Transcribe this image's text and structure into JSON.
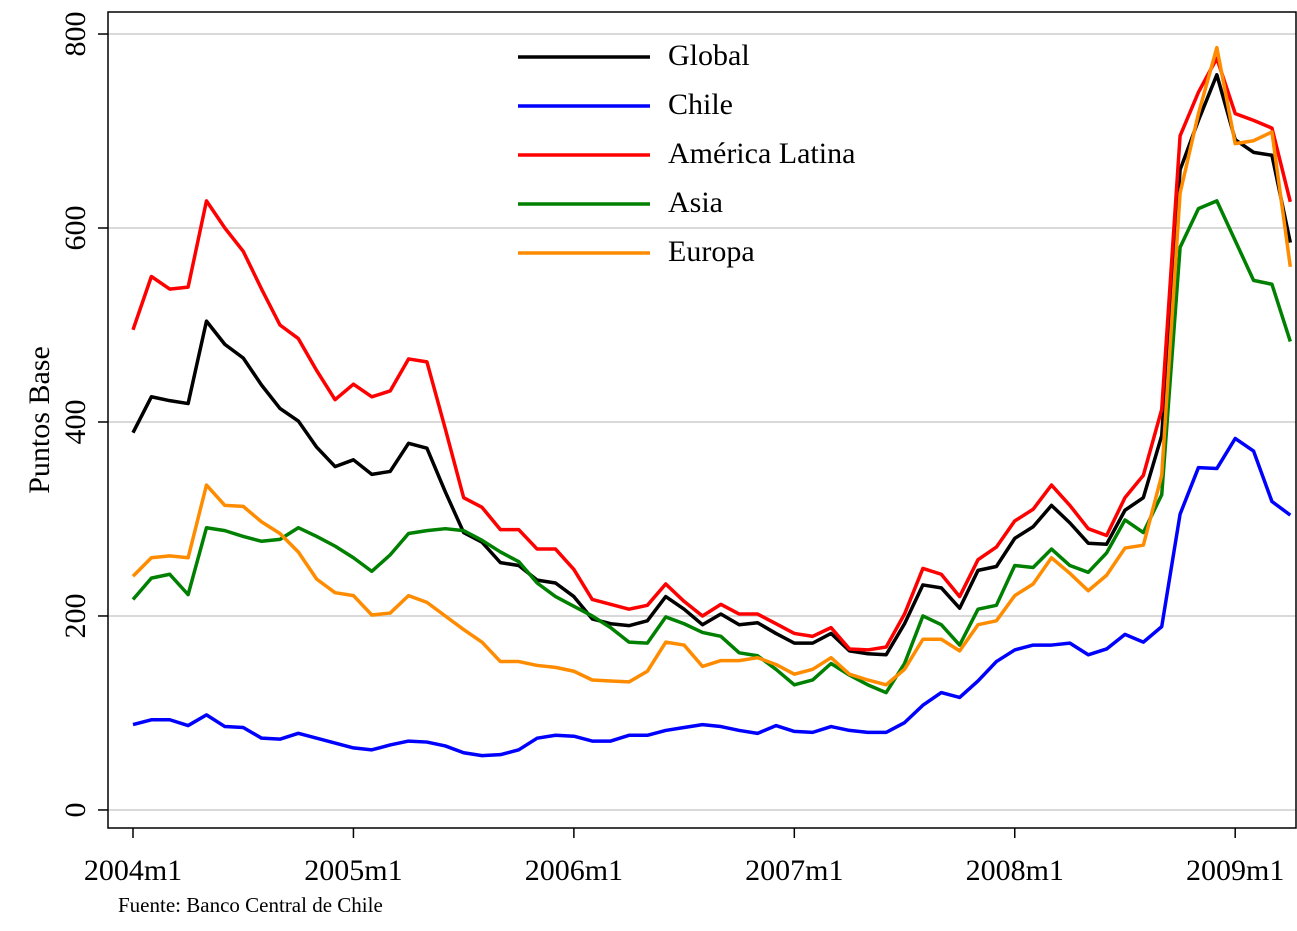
{
  "chart_data": {
    "type": "line",
    "y_label": "Puntos Base",
    "note": "Fuente: Banco Central de Chile",
    "categories": [
      "2004m1",
      null,
      null,
      null,
      null,
      null,
      null,
      null,
      null,
      null,
      null,
      null,
      "2005m1",
      null,
      null,
      null,
      null,
      null,
      null,
      null,
      null,
      null,
      null,
      null,
      "2006m1",
      null,
      null,
      null,
      null,
      null,
      null,
      null,
      null,
      null,
      null,
      null,
      "2007m1",
      null,
      null,
      null,
      null,
      null,
      null,
      null,
      null,
      null,
      null,
      null,
      "2008m1",
      null,
      null,
      null,
      null,
      null,
      null,
      null,
      null,
      null,
      null,
      null,
      "2009m1",
      null,
      null,
      null
    ],
    "ylim": [
      -18.6,
      822.7
    ],
    "yticks": [
      0,
      200,
      400,
      600,
      800
    ],
    "grid": true,
    "legend": "upper-center",
    "series": [
      {
        "name": "Global",
        "color": "#000000",
        "values": [
          389,
          426,
          422,
          419,
          504,
          480,
          466,
          438,
          414,
          401,
          374,
          354,
          361,
          346,
          349,
          378,
          373,
          328,
          286,
          276,
          255,
          252,
          237,
          234,
          220,
          197,
          192,
          190,
          195,
          220,
          207,
          191,
          202,
          191,
          193,
          182,
          172,
          172,
          182,
          164,
          161,
          160,
          192,
          232,
          229,
          208,
          247,
          251,
          280,
          292,
          314,
          296,
          275,
          274,
          309,
          322,
          386,
          660,
          711,
          758,
          691,
          678,
          675,
          585
        ]
      },
      {
        "name": "Chile",
        "color": "#0000ff",
        "values": [
          88,
          93,
          93,
          87,
          98,
          86,
          85,
          74,
          73,
          79,
          74,
          69,
          64,
          62,
          67,
          71,
          70,
          66,
          59,
          56,
          57,
          62,
          74,
          77,
          76,
          71,
          71,
          77,
          77,
          82,
          85,
          88,
          86,
          82,
          79,
          87,
          81,
          80,
          86,
          82,
          80,
          80,
          90,
          108,
          121,
          116,
          133,
          153,
          165,
          170,
          170,
          172,
          160,
          166,
          181,
          173,
          189,
          305,
          353,
          352,
          383,
          370,
          318,
          304
        ]
      },
      {
        "name": "América Latina",
        "color": "#ff0000",
        "values": [
          495,
          550,
          537,
          539,
          628,
          600,
          576,
          537,
          500,
          486,
          453,
          423,
          439,
          426,
          432,
          465,
          462,
          393,
          322,
          312,
          289,
          289,
          269,
          269,
          248,
          217,
          212,
          207,
          211,
          233,
          215,
          200,
          212,
          202,
          202,
          192,
          182,
          179,
          188,
          166,
          165,
          168,
          202,
          249,
          243,
          220,
          258,
          271,
          298,
          310,
          335,
          314,
          290,
          283,
          322,
          345,
          413,
          695,
          740,
          775,
          718,
          711,
          703,
          627
        ]
      },
      {
        "name": "Asia",
        "color": "#008000",
        "values": [
          217,
          239,
          243,
          222,
          291,
          288,
          282,
          277,
          279,
          291,
          282,
          272,
          260,
          246,
          263,
          285,
          288,
          290,
          288,
          278,
          266,
          256,
          234,
          220,
          210,
          200,
          188,
          173,
          172,
          199,
          192,
          183,
          179,
          162,
          159,
          145,
          129,
          134,
          151,
          139,
          129,
          121,
          151,
          200,
          191,
          170,
          207,
          211,
          252,
          250,
          269,
          252,
          245,
          265,
          299,
          286,
          325,
          580,
          620,
          628,
          587,
          546,
          542,
          483
        ]
      },
      {
        "name": "Europa",
        "color": "#ff8c00",
        "values": [
          241,
          260,
          262,
          260,
          335,
          314,
          313,
          297,
          285,
          266,
          238,
          224,
          221,
          201,
          203,
          221,
          214,
          200,
          186,
          173,
          153,
          153,
          149,
          147,
          143,
          134,
          133,
          132,
          143,
          173,
          170,
          148,
          154,
          154,
          157,
          150,
          140,
          145,
          157,
          140,
          134,
          129,
          145,
          176,
          176,
          164,
          191,
          195,
          221,
          233,
          260,
          244,
          226,
          242,
          270,
          273,
          345,
          636,
          718,
          786,
          687,
          690,
          699,
          560
        ]
      }
    ]
  }
}
